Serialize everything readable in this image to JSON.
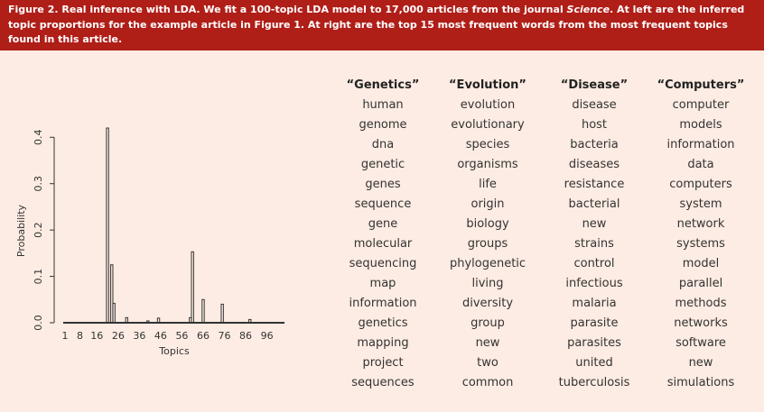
{
  "caption": {
    "label": "Figure 2.",
    "text_part1": "Real inference with LDA. We fit a 100-topic LDA model to 17,000 articles from the journal ",
    "journal": "Science",
    "text_part2": ". At left are the inferred topic proportions for the example article in Figure 1. At right are the top 15 most frequent words from the most frequent topics found in this article."
  },
  "colors": {
    "caption_background": "#b01e18",
    "caption_text": "#ffffff",
    "figure_background": "#fdece3",
    "plot_ink": "#333333"
  },
  "chart_data": [
    {
      "type": "bar",
      "title": "",
      "xlabel": "Topics",
      "ylabel": "Probability",
      "xlim": [
        1,
        100
      ],
      "ylim": [
        0,
        0.42
      ],
      "x_ticks": [
        1,
        8,
        16,
        26,
        36,
        46,
        56,
        66,
        76,
        86,
        96
      ],
      "y_ticks": [
        0.0,
        0.1,
        0.2,
        0.3,
        0.4
      ],
      "y_tick_labels": [
        "0.0",
        "0.1",
        "0.2",
        "0.3",
        "0.4"
      ],
      "grid": false,
      "x": [
        21,
        23,
        24,
        30,
        40,
        45,
        60,
        61,
        66,
        75,
        88
      ],
      "values": [
        0.42,
        0.125,
        0.042,
        0.011,
        0.004,
        0.01,
        0.011,
        0.153,
        0.05,
        0.04,
        0.007
      ]
    },
    {
      "type": "table",
      "columns": [
        {
          "header": "“Genetics”",
          "words": [
            "human",
            "genome",
            "dna",
            "genetic",
            "genes",
            "sequence",
            "gene",
            "molecular",
            "sequencing",
            "map",
            "information",
            "genetics",
            "mapping",
            "project",
            "sequences"
          ]
        },
        {
          "header": "“Evolution”",
          "words": [
            "evolution",
            "evolutionary",
            "species",
            "organisms",
            "life",
            "origin",
            "biology",
            "groups",
            "phylogenetic",
            "living",
            "diversity",
            "group",
            "new",
            "two",
            "common"
          ]
        },
        {
          "header": "“Disease”",
          "words": [
            "disease",
            "host",
            "bacteria",
            "diseases",
            "resistance",
            "bacterial",
            "new",
            "strains",
            "control",
            "infectious",
            "malaria",
            "parasite",
            "parasites",
            "united",
            "tuberculosis"
          ]
        },
        {
          "header": "“Computers”",
          "words": [
            "computer",
            "models",
            "information",
            "data",
            "computers",
            "system",
            "network",
            "systems",
            "model",
            "parallel",
            "methods",
            "networks",
            "software",
            "new",
            "simulations"
          ]
        }
      ]
    }
  ]
}
